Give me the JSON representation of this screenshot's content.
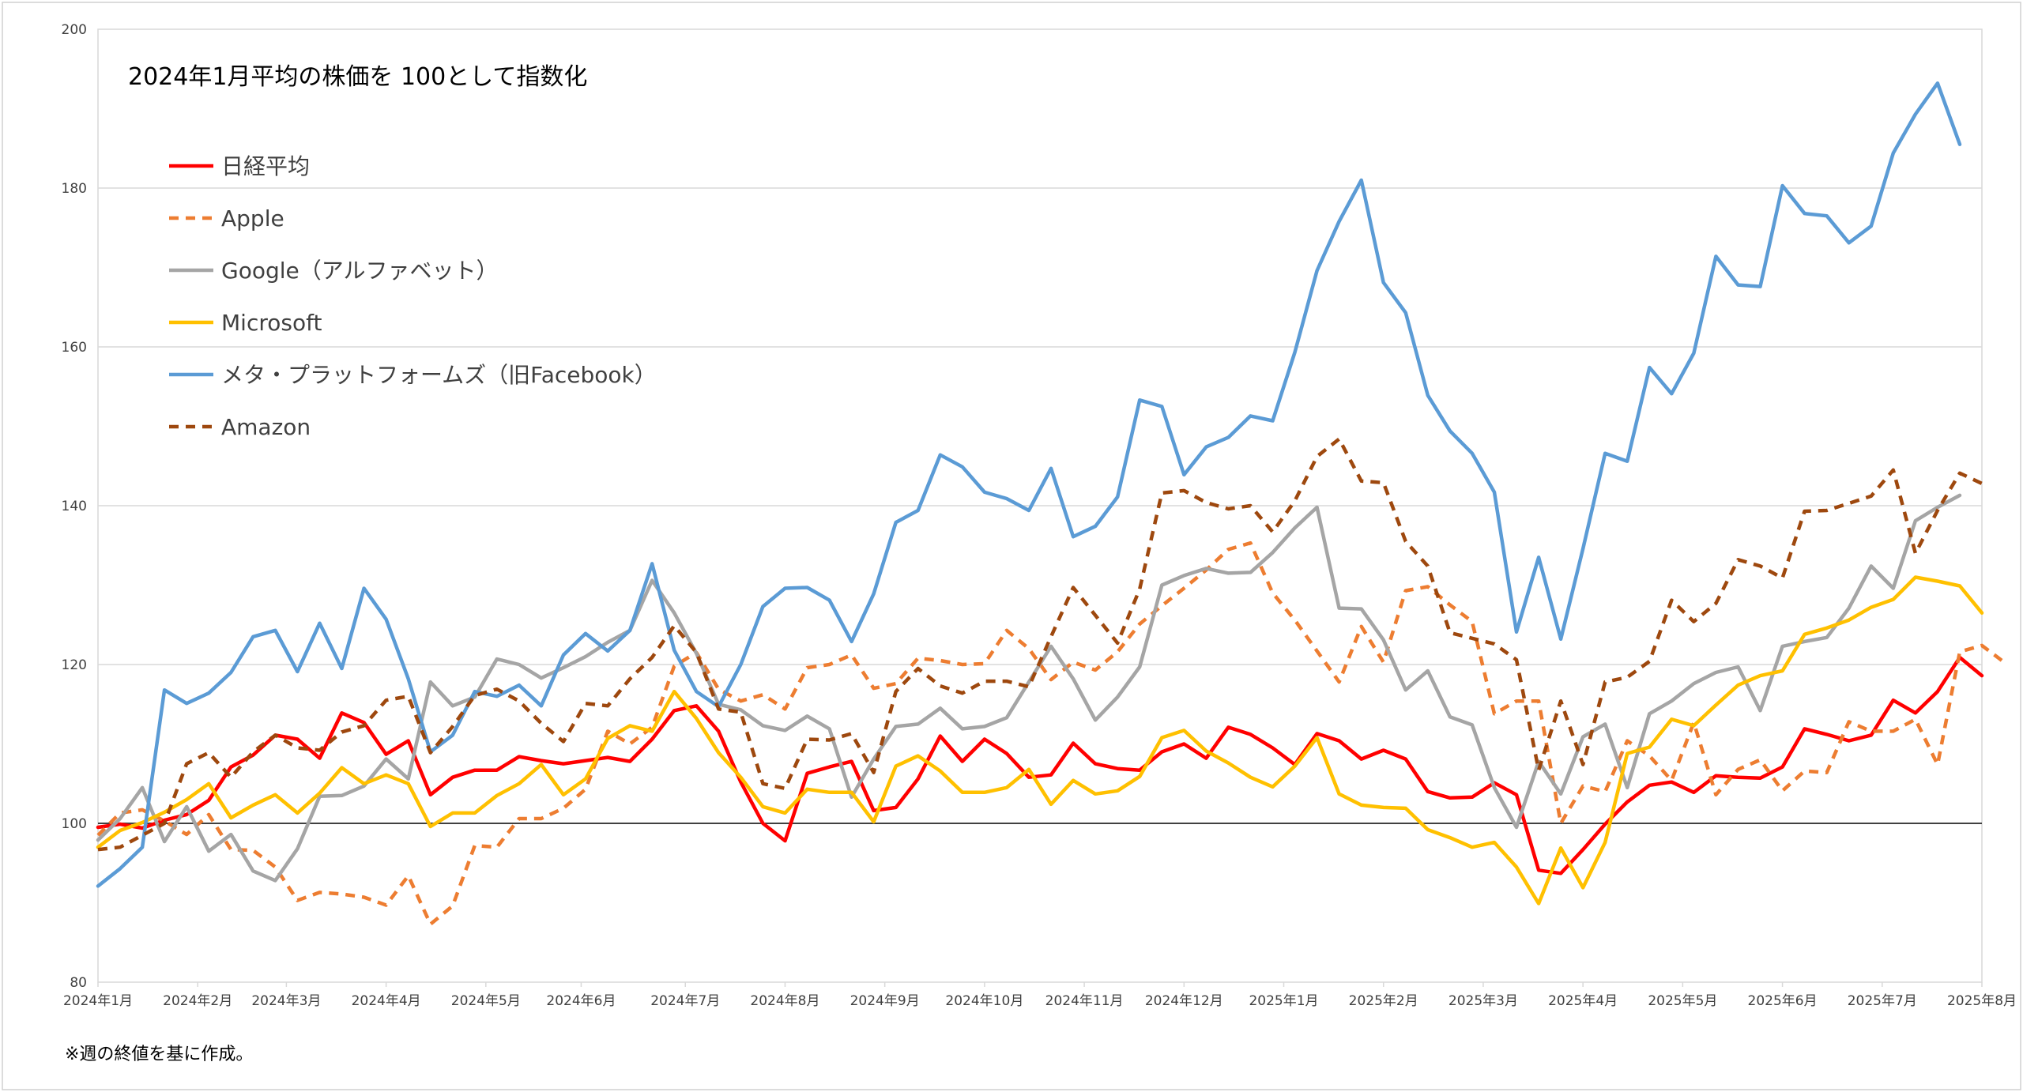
{
  "chart_data": {
    "type": "line",
    "title": "2024年1月平均の株価を  100として指数化",
    "footnote": "※週の終値を基に作成。",
    "xlabel": "",
    "ylabel": "",
    "ylim": [
      80,
      200
    ],
    "y_ticks": [
      "80",
      "100",
      "120",
      "140",
      "160",
      "180",
      "200"
    ],
    "reference_line": 100,
    "grid": true,
    "legend_position": "top-left",
    "x_tick_labels": [
      "2024年1月",
      "2024年2月",
      "2024年3月",
      "2024年4月",
      "2024年5月",
      "2024年6月",
      "2024年7月",
      "2024年8月",
      "2024年9月",
      "2024年10月",
      "2024年11月",
      "2024年12月",
      "2025年1月",
      "2025年2月",
      "2025年3月",
      "2025年4月",
      "2025年5月",
      "2025年6月",
      "2025年7月",
      "2025年8月"
    ],
    "series": [
      {
        "name": "日経平均",
        "color": "#ff0000",
        "dash": "solid",
        "values": [
          99.5,
          99.9,
          99.4,
          100.4,
          101.1,
          102.9,
          107.1,
          108.6,
          111.1,
          110.6,
          108.2,
          113.9,
          112.7,
          108.7,
          110.4,
          103.6,
          105.8,
          106.7,
          106.7,
          108.4,
          107.9,
          107.5,
          107.9,
          108.3,
          107.8,
          110.6,
          114.2,
          114.8,
          111.6,
          105.2,
          100.0,
          97.8,
          106.3,
          107.1,
          107.8,
          101.6,
          102.0,
          105.6,
          111.0,
          107.8,
          110.6,
          108.8,
          105.8,
          106.1,
          110.1,
          107.5,
          106.9,
          106.7,
          109.0,
          110.0,
          108.2,
          112.1,
          111.2,
          109.5,
          107.4,
          111.3,
          110.4,
          108.1,
          109.2,
          108.1,
          104.0,
          103.2,
          103.3,
          105.1,
          103.6,
          94.1,
          93.7,
          96.7,
          99.9,
          102.7,
          104.8,
          105.2,
          103.9,
          106.0,
          105.8,
          105.7,
          107.1,
          111.9,
          111.2,
          110.4,
          111.1,
          115.5,
          113.9,
          116.6,
          120.9,
          118.6
        ]
      },
      {
        "name": "Apple",
        "color": "#ed7d31",
        "dash": "dashed",
        "values": [
          98.5,
          101.3,
          101.7,
          100.3,
          98.6,
          101.1,
          96.7,
          96.6,
          94.5,
          90.3,
          91.3,
          91.1,
          90.7,
          89.7,
          93.4,
          87.3,
          89.6,
          97.2,
          97.0,
          100.6,
          100.6,
          101.9,
          104.3,
          111.6,
          110.0,
          112.1,
          119.8,
          121.5,
          116.9,
          115.4,
          116.2,
          114.4,
          119.6,
          120.0,
          121.2,
          117.0,
          117.6,
          120.8,
          120.5,
          120.0,
          120.1,
          124.3,
          122.0,
          118.1,
          120.3,
          119.3,
          121.6,
          125.1,
          127.4,
          129.6,
          131.9,
          134.5,
          135.3,
          129.0,
          125.6,
          121.7,
          117.8,
          124.8,
          120.3,
          129.3,
          129.8,
          127.5,
          125.4,
          113.8,
          115.4,
          115.4,
          100.0,
          104.7,
          104.0,
          110.4,
          108.5,
          105.4,
          112.7,
          103.6,
          106.8,
          108.0,
          104.1,
          106.6,
          106.4,
          112.8,
          111.6,
          111.6,
          113.1,
          107.4,
          121.6,
          122.4,
          120.3
        ]
      },
      {
        "name": "Google（アルファベット）",
        "color": "#a5a5a5",
        "dash": "solid",
        "values": [
          97.9,
          100.6,
          104.5,
          97.7,
          102.1,
          96.5,
          98.6,
          94.0,
          92.8,
          96.8,
          103.4,
          103.5,
          104.7,
          108.1,
          105.6,
          117.8,
          114.8,
          115.9,
          120.7,
          120.0,
          118.3,
          119.6,
          121.0,
          122.8,
          124.3,
          130.6,
          126.5,
          121.4,
          115.0,
          114.3,
          112.3,
          111.7,
          113.5,
          111.9,
          103.3,
          108.1,
          112.2,
          112.5,
          114.5,
          111.9,
          112.2,
          113.3,
          117.8,
          122.3,
          118.2,
          113.0,
          115.9,
          119.7,
          130.0,
          131.2,
          132.1,
          131.5,
          131.6,
          134.1,
          137.2,
          139.8,
          127.1,
          127.0,
          123.1,
          116.8,
          119.2,
          113.4,
          112.4,
          104.5,
          99.5,
          107.8,
          103.7,
          110.9,
          112.5,
          104.5,
          113.8,
          115.4,
          117.6,
          119.0,
          119.7,
          114.2,
          122.3,
          122.9,
          123.4,
          127.1,
          132.4,
          129.6,
          138.1,
          139.8,
          141.3
        ]
      },
      {
        "name": "Microsoft",
        "color": "#ffc000",
        "dash": "solid",
        "values": [
          97.0,
          99.1,
          100.1,
          101.4,
          103.0,
          105.0,
          100.7,
          102.3,
          103.6,
          101.3,
          103.8,
          107.0,
          105.0,
          106.1,
          105.0,
          99.6,
          101.3,
          101.3,
          103.5,
          105.0,
          107.4,
          103.6,
          105.6,
          110.7,
          112.3,
          111.6,
          116.6,
          113.2,
          108.9,
          105.8,
          102.1,
          101.3,
          104.3,
          103.9,
          103.9,
          100.2,
          107.2,
          108.5,
          106.6,
          103.9,
          103.9,
          104.5,
          106.8,
          102.4,
          105.4,
          103.7,
          104.1,
          105.9,
          110.8,
          111.7,
          109.1,
          107.6,
          105.8,
          104.6,
          107.2,
          110.8,
          103.7,
          102.3,
          102.0,
          101.9,
          99.2,
          98.2,
          97.0,
          97.6,
          94.5,
          89.9,
          96.9,
          91.9,
          97.6,
          108.8,
          109.6,
          113.1,
          112.3,
          114.9,
          117.4,
          118.6,
          119.2,
          123.8,
          124.6,
          125.6,
          127.2,
          128.2,
          131.0,
          130.5,
          129.9,
          126.5
        ]
      },
      {
        "name": "メタ・プラットフォームズ（旧Facebook）",
        "color": "#5b9bd5",
        "dash": "solid",
        "values": [
          92.1,
          94.3,
          97.0,
          116.8,
          115.1,
          116.4,
          119.0,
          123.5,
          124.3,
          119.1,
          125.2,
          119.5,
          129.6,
          125.7,
          118.2,
          109.0,
          111.1,
          116.6,
          116.0,
          117.4,
          114.8,
          121.2,
          123.9,
          121.7,
          124.3,
          132.7,
          121.8,
          116.6,
          114.7,
          120.0,
          127.3,
          129.6,
          129.7,
          128.1,
          122.9,
          128.9,
          137.9,
          139.4,
          146.4,
          144.9,
          141.7,
          140.9,
          139.4,
          144.7,
          136.1,
          137.4,
          141.1,
          153.3,
          152.5,
          143.9,
          147.4,
          148.6,
          151.3,
          150.7,
          159.3,
          169.6,
          175.8,
          181.0,
          168.1,
          164.3,
          153.9,
          149.4,
          146.6,
          141.7,
          124.1,
          133.5,
          123.2,
          134.6,
          146.6,
          145.6,
          157.4,
          154.1,
          159.2,
          171.4,
          167.8,
          167.6,
          180.3,
          176.8,
          176.5,
          173.1,
          175.2,
          184.4,
          189.3,
          193.2,
          185.5
        ]
      },
      {
        "name": "Amazon",
        "color": "#9e480e",
        "dash": "dashed",
        "values": [
          96.7,
          97.0,
          98.5,
          100.0,
          107.5,
          108.9,
          105.8,
          109.0,
          111.1,
          109.5,
          109.2,
          111.5,
          112.3,
          115.5,
          116.0,
          108.9,
          112.2,
          116.1,
          116.9,
          115.4,
          112.6,
          110.3,
          115.1,
          114.8,
          118.2,
          120.9,
          124.9,
          121.5,
          114.4,
          114.0,
          105.0,
          104.4,
          110.6,
          110.5,
          111.3,
          106.4,
          116.6,
          119.5,
          117.3,
          116.4,
          117.9,
          117.9,
          117.2,
          123.5,
          129.7,
          126.2,
          122.7,
          129.5,
          141.6,
          141.9,
          140.4,
          139.6,
          140.0,
          136.7,
          140.6,
          146.2,
          148.4,
          143.1,
          142.9,
          135.5,
          132.4,
          124.0,
          123.3,
          122.6,
          120.6,
          106.7,
          115.4,
          107.4,
          117.8,
          118.4,
          120.4,
          128.1,
          125.4,
          127.7,
          133.2,
          132.4,
          130.9,
          139.3,
          139.4,
          140.3,
          141.2,
          144.5,
          134.0,
          139.4,
          144.1,
          142.8
        ]
      }
    ]
  }
}
